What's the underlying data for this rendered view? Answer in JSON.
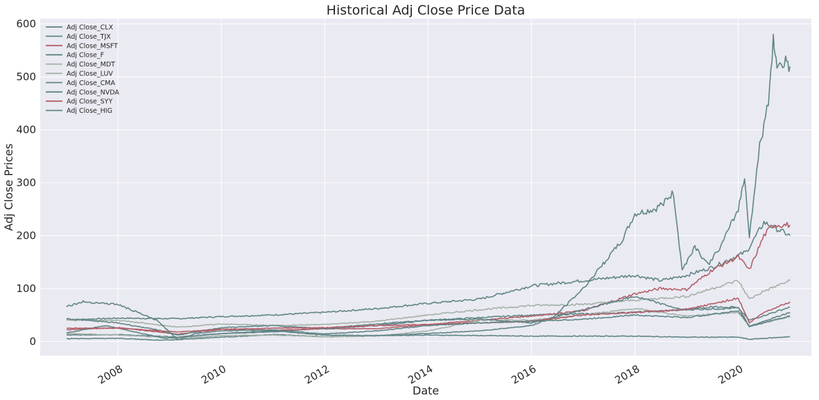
{
  "chart_data": {
    "type": "line",
    "title": "Historical Adj Close Price Data",
    "xlabel": "Date",
    "ylabel": "Adj Close Prices",
    "xlim": [
      "2006-07-01",
      "2021-06-01"
    ],
    "ylim": [
      -27,
      610
    ],
    "yticks": [
      0,
      100,
      200,
      300,
      400,
      500,
      600
    ],
    "xticks": [
      "2008-01-01",
      "2010-01-01",
      "2012-01-01",
      "2014-01-01",
      "2016-01-01",
      "2018-01-01",
      "2020-01-01"
    ],
    "xtick_labels": [
      "2008",
      "2010",
      "2012",
      "2014",
      "2016",
      "2018",
      "2020"
    ],
    "grid": true,
    "legend_position": "top-left",
    "series": [
      {
        "name": "Adj Close_CLX",
        "color": "#5f8585",
        "points": [
          [
            "2007-01-03",
            41
          ],
          [
            "2008-01-01",
            44
          ],
          [
            "2009-03-01",
            43
          ],
          [
            "2010-01-01",
            47
          ],
          [
            "2011-01-01",
            50
          ],
          [
            "2012-01-01",
            55
          ],
          [
            "2013-01-01",
            62
          ],
          [
            "2014-01-01",
            72
          ],
          [
            "2015-01-01",
            80
          ],
          [
            "2016-01-01",
            105
          ],
          [
            "2017-01-01",
            115
          ],
          [
            "2018-01-01",
            125
          ],
          [
            "2018-07-01",
            115
          ],
          [
            "2019-01-01",
            125
          ],
          [
            "2019-07-01",
            140
          ],
          [
            "2020-03-01",
            170
          ],
          [
            "2020-07-01",
            225
          ],
          [
            "2021-01-01",
            200
          ]
        ]
      },
      {
        "name": "Adj Close_TJX",
        "color": "#5f8585",
        "points": [
          [
            "2007-01-03",
            12
          ],
          [
            "2008-01-01",
            13
          ],
          [
            "2009-03-01",
            8
          ],
          [
            "2010-01-01",
            15
          ],
          [
            "2011-01-01",
            18
          ],
          [
            "2012-01-01",
            25
          ],
          [
            "2013-01-01",
            33
          ],
          [
            "2014-01-01",
            40
          ],
          [
            "2015-01-01",
            45
          ],
          [
            "2016-01-01",
            50
          ],
          [
            "2017-01-01",
            52
          ],
          [
            "2018-01-01",
            55
          ],
          [
            "2019-01-01",
            60
          ],
          [
            "2020-01-01",
            63
          ],
          [
            "2020-03-20",
            40
          ],
          [
            "2021-01-01",
            65
          ]
        ]
      },
      {
        "name": "Adj Close_MSFT",
        "color": "#b55d67",
        "points": [
          [
            "2007-01-03",
            22
          ],
          [
            "2008-01-01",
            26
          ],
          [
            "2009-03-01",
            14
          ],
          [
            "2010-01-01",
            23
          ],
          [
            "2011-01-01",
            21
          ],
          [
            "2012-01-01",
            24
          ],
          [
            "2013-01-01",
            24
          ],
          [
            "2014-01-01",
            32
          ],
          [
            "2015-01-01",
            40
          ],
          [
            "2016-01-01",
            48
          ],
          [
            "2017-01-01",
            58
          ],
          [
            "2018-01-01",
            90
          ],
          [
            "2018-07-01",
            100
          ],
          [
            "2019-01-01",
            98
          ],
          [
            "2019-07-01",
            135
          ],
          [
            "2020-01-01",
            160
          ],
          [
            "2020-03-20",
            135
          ],
          [
            "2020-07-01",
            200
          ],
          [
            "2020-09-01",
            220
          ],
          [
            "2021-01-01",
            220
          ]
        ]
      },
      {
        "name": "Adj Close_F",
        "color": "#5f8585",
        "points": [
          [
            "2007-01-03",
            5
          ],
          [
            "2008-01-01",
            6
          ],
          [
            "2008-11-01",
            2
          ],
          [
            "2009-06-01",
            5
          ],
          [
            "2010-01-01",
            8
          ],
          [
            "2011-01-01",
            13
          ],
          [
            "2012-01-01",
            9
          ],
          [
            "2013-01-01",
            11
          ],
          [
            "2014-01-01",
            12
          ],
          [
            "2015-01-01",
            11
          ],
          [
            "2016-01-01",
            10
          ],
          [
            "2017-01-01",
            10
          ],
          [
            "2018-01-01",
            10
          ],
          [
            "2019-01-01",
            8
          ],
          [
            "2020-01-01",
            8
          ],
          [
            "2020-03-20",
            4
          ],
          [
            "2021-01-01",
            9
          ]
        ]
      },
      {
        "name": "Adj Close_MDT",
        "color": "#a3b1a8",
        "points": [
          [
            "2007-01-03",
            40
          ],
          [
            "2008-01-01",
            40
          ],
          [
            "2009-03-01",
            27
          ],
          [
            "2010-01-01",
            33
          ],
          [
            "2011-01-01",
            30
          ],
          [
            "2012-01-01",
            32
          ],
          [
            "2013-01-01",
            38
          ],
          [
            "2014-01-01",
            50
          ],
          [
            "2015-01-01",
            60
          ],
          [
            "2016-01-01",
            68
          ],
          [
            "2017-01-01",
            70
          ],
          [
            "2018-01-01",
            78
          ],
          [
            "2019-01-01",
            85
          ],
          [
            "2019-07-01",
            100
          ],
          [
            "2020-01-01",
            115
          ],
          [
            "2020-03-20",
            80
          ],
          [
            "2020-07-01",
            95
          ],
          [
            "2021-01-01",
            115
          ]
        ]
      },
      {
        "name": "Adj Close_LUV",
        "color": "#a3b1a8",
        "points": [
          [
            "2007-01-03",
            15
          ],
          [
            "2008-01-01",
            12
          ],
          [
            "2009-03-01",
            6
          ],
          [
            "2010-01-01",
            11
          ],
          [
            "2011-01-01",
            12
          ],
          [
            "2012-01-01",
            9
          ],
          [
            "2013-01-01",
            10
          ],
          [
            "2014-01-01",
            20
          ],
          [
            "2015-01-01",
            40
          ],
          [
            "2016-01-01",
            40
          ],
          [
            "2017-01-01",
            50
          ],
          [
            "2018-01-01",
            62
          ],
          [
            "2019-01-01",
            48
          ],
          [
            "2020-01-01",
            55
          ],
          [
            "2020-03-20",
            30
          ],
          [
            "2021-01-01",
            47
          ]
        ]
      },
      {
        "name": "Adj Close_CMA",
        "color": "#5f8585",
        "points": [
          [
            "2007-01-03",
            43
          ],
          [
            "2008-01-01",
            35
          ],
          [
            "2008-10-01",
            22
          ],
          [
            "2009-03-01",
            12
          ],
          [
            "2010-01-01",
            26
          ],
          [
            "2011-01-01",
            30
          ],
          [
            "2012-01-01",
            24
          ],
          [
            "2013-01-01",
            30
          ],
          [
            "2014-01-01",
            40
          ],
          [
            "2015-01-01",
            42
          ],
          [
            "2016-01-01",
            35
          ],
          [
            "2017-01-01",
            60
          ],
          [
            "2018-01-01",
            85
          ],
          [
            "2018-12-01",
            60
          ],
          [
            "2019-07-01",
            65
          ],
          [
            "2020-01-01",
            65
          ],
          [
            "2020-03-20",
            28
          ],
          [
            "2021-01-01",
            55
          ]
        ]
      },
      {
        "name": "Adj Close_NVDA",
        "color": "#5f8585",
        "points": [
          [
            "2007-01-03",
            16
          ],
          [
            "2007-10-01",
            30
          ],
          [
            "2008-12-01",
            6
          ],
          [
            "2010-01-01",
            15
          ],
          [
            "2011-01-01",
            20
          ],
          [
            "2012-01-01",
            12
          ],
          [
            "2013-01-01",
            11
          ],
          [
            "2014-01-01",
            15
          ],
          [
            "2015-01-01",
            20
          ],
          [
            "2016-01-01",
            30
          ],
          [
            "2016-06-01",
            45
          ],
          [
            "2017-01-01",
            100
          ],
          [
            "2017-06-01",
            150
          ],
          [
            "2017-10-01",
            190
          ],
          [
            "2018-01-01",
            240
          ],
          [
            "2018-06-01",
            250
          ],
          [
            "2018-10-01",
            280
          ],
          [
            "2018-12-01",
            135
          ],
          [
            "2019-03-01",
            180
          ],
          [
            "2019-06-01",
            145
          ],
          [
            "2019-09-01",
            180
          ],
          [
            "2020-01-01",
            250
          ],
          [
            "2020-02-15",
            310
          ],
          [
            "2020-03-20",
            200
          ],
          [
            "2020-06-01",
            370
          ],
          [
            "2020-08-01",
            450
          ],
          [
            "2020-09-05",
            575
          ],
          [
            "2020-10-01",
            520
          ],
          [
            "2020-12-01",
            530
          ],
          [
            "2021-01-01",
            520
          ]
        ]
      },
      {
        "name": "Adj Close_SYY",
        "color": "#b55d67",
        "points": [
          [
            "2007-01-03",
            25
          ],
          [
            "2008-01-01",
            25
          ],
          [
            "2009-03-01",
            18
          ],
          [
            "2010-01-01",
            23
          ],
          [
            "2011-01-01",
            25
          ],
          [
            "2012-01-01",
            26
          ],
          [
            "2013-01-01",
            30
          ],
          [
            "2014-01-01",
            32
          ],
          [
            "2015-01-01",
            35
          ],
          [
            "2016-01-01",
            38
          ],
          [
            "2017-01-01",
            50
          ],
          [
            "2018-01-01",
            55
          ],
          [
            "2019-01-01",
            60
          ],
          [
            "2020-01-01",
            82
          ],
          [
            "2020-03-20",
            35
          ],
          [
            "2020-07-01",
            55
          ],
          [
            "2021-01-01",
            75
          ]
        ]
      },
      {
        "name": "Adj Close_HIG",
        "color": "#5f8585",
        "points": [
          [
            "2007-01-03",
            66
          ],
          [
            "2007-05-01",
            75
          ],
          [
            "2008-01-01",
            70
          ],
          [
            "2008-10-01",
            40
          ],
          [
            "2009-03-01",
            3
          ],
          [
            "2009-07-01",
            15
          ],
          [
            "2010-01-01",
            20
          ],
          [
            "2011-01-01",
            22
          ],
          [
            "2012-01-01",
            14
          ],
          [
            "2013-01-01",
            20
          ],
          [
            "2014-01-01",
            30
          ],
          [
            "2015-01-01",
            35
          ],
          [
            "2016-01-01",
            38
          ],
          [
            "2017-01-01",
            42
          ],
          [
            "2018-01-01",
            50
          ],
          [
            "2019-01-01",
            45
          ],
          [
            "2020-01-01",
            58
          ],
          [
            "2020-03-20",
            28
          ],
          [
            "2021-01-01",
            48
          ]
        ]
      }
    ]
  }
}
